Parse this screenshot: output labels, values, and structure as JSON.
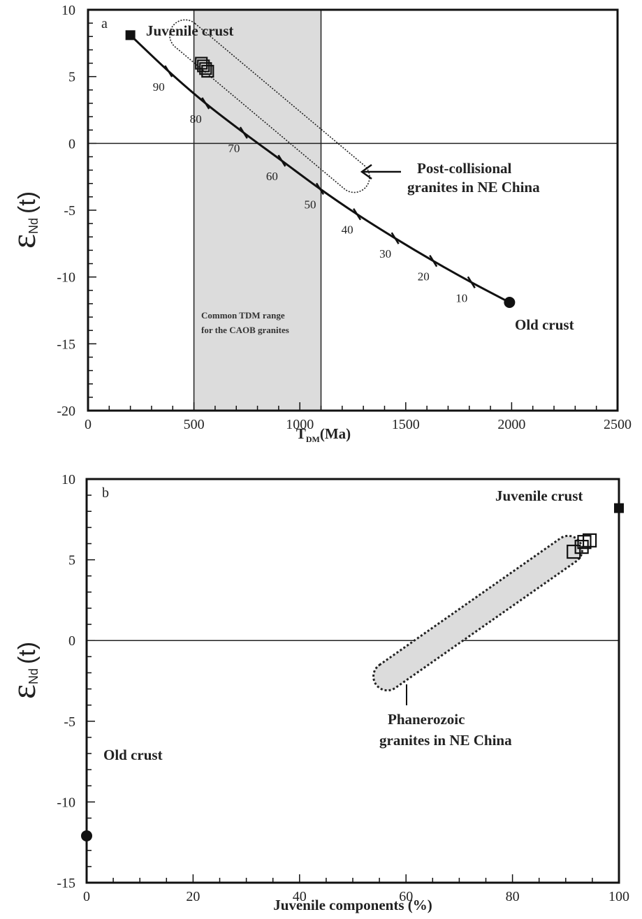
{
  "chart_data": [
    {
      "type": "scatter",
      "panel_label": "a",
      "title": "",
      "xlabel": "T",
      "xlabel_sub": "DM",
      "xlabel_suffix": "(Ma)",
      "ylabel_main": "ε",
      "ylabel_sub": "Nd",
      "ylabel_suffix": "(t)",
      "xlim": [
        0,
        2500
      ],
      "ylim": [
        -20,
        10
      ],
      "xticks": [
        0,
        500,
        1000,
        1500,
        2000,
        2500
      ],
      "yticks": [
        10,
        5,
        0,
        -5,
        -10,
        -15,
        -20
      ],
      "grid": false,
      "shaded_band": {
        "x0": 500,
        "x1": 1100,
        "label_line1": "Common TDM range",
        "label_line2": "for the CAOB granites"
      },
      "mixing_curve": {
        "start": {
          "x": 200,
          "y": 8.1,
          "label": "Juvenile crust"
        },
        "end": {
          "x": 1990,
          "y": -11.9,
          "label": "Old crust"
        },
        "ticks": [
          {
            "pct": "90",
            "x": 380,
            "y": 5.4
          },
          {
            "pct": "80",
            "x": 555,
            "y": 3.0
          },
          {
            "pct": "70",
            "x": 735,
            "y": 0.8
          },
          {
            "pct": "60",
            "x": 915,
            "y": -1.3
          },
          {
            "pct": "50",
            "x": 1095,
            "y": -3.4
          },
          {
            "pct": "40",
            "x": 1270,
            "y": -5.3
          },
          {
            "pct": "30",
            "x": 1450,
            "y": -7.1
          },
          {
            "pct": "20",
            "x": 1630,
            "y": -8.8
          },
          {
            "pct": "10",
            "x": 1810,
            "y": -10.4
          }
        ]
      },
      "samples": [
        {
          "x": 535,
          "y": 6.0
        },
        {
          "x": 545,
          "y": 5.8
        },
        {
          "x": 555,
          "y": 5.6
        },
        {
          "x": 565,
          "y": 5.4
        }
      ],
      "field": {
        "label_line1": "Post-collisional",
        "label_line2": "granites in NE China"
      }
    },
    {
      "type": "scatter",
      "panel_label": "b",
      "title": "",
      "xlabel": "Juvenile components (%)",
      "ylabel_main": "ε",
      "ylabel_sub": "Nd",
      "ylabel_suffix": "(t)",
      "xlim": [
        0,
        100
      ],
      "ylim": [
        -15,
        10
      ],
      "xticks": [
        0,
        20,
        40,
        60,
        80,
        100
      ],
      "yticks": [
        10,
        5,
        0,
        -5,
        -10,
        -15
      ],
      "grid": false,
      "endmembers": [
        {
          "x": 100,
          "y": 8.2,
          "label": "Juvenile crust",
          "marker": "filled-square"
        },
        {
          "x": 0,
          "y": -12.1,
          "label": "Old crust",
          "marker": "filled-circle"
        }
      ],
      "samples": [
        {
          "x": 91.5,
          "y": 5.5
        },
        {
          "x": 93,
          "y": 5.8
        },
        {
          "x": 93.5,
          "y": 6.1
        },
        {
          "x": 94.5,
          "y": 6.2
        }
      ],
      "field": {
        "label_line1": "Phanerozoic",
        "label_line2": "granites in NE China"
      }
    }
  ]
}
